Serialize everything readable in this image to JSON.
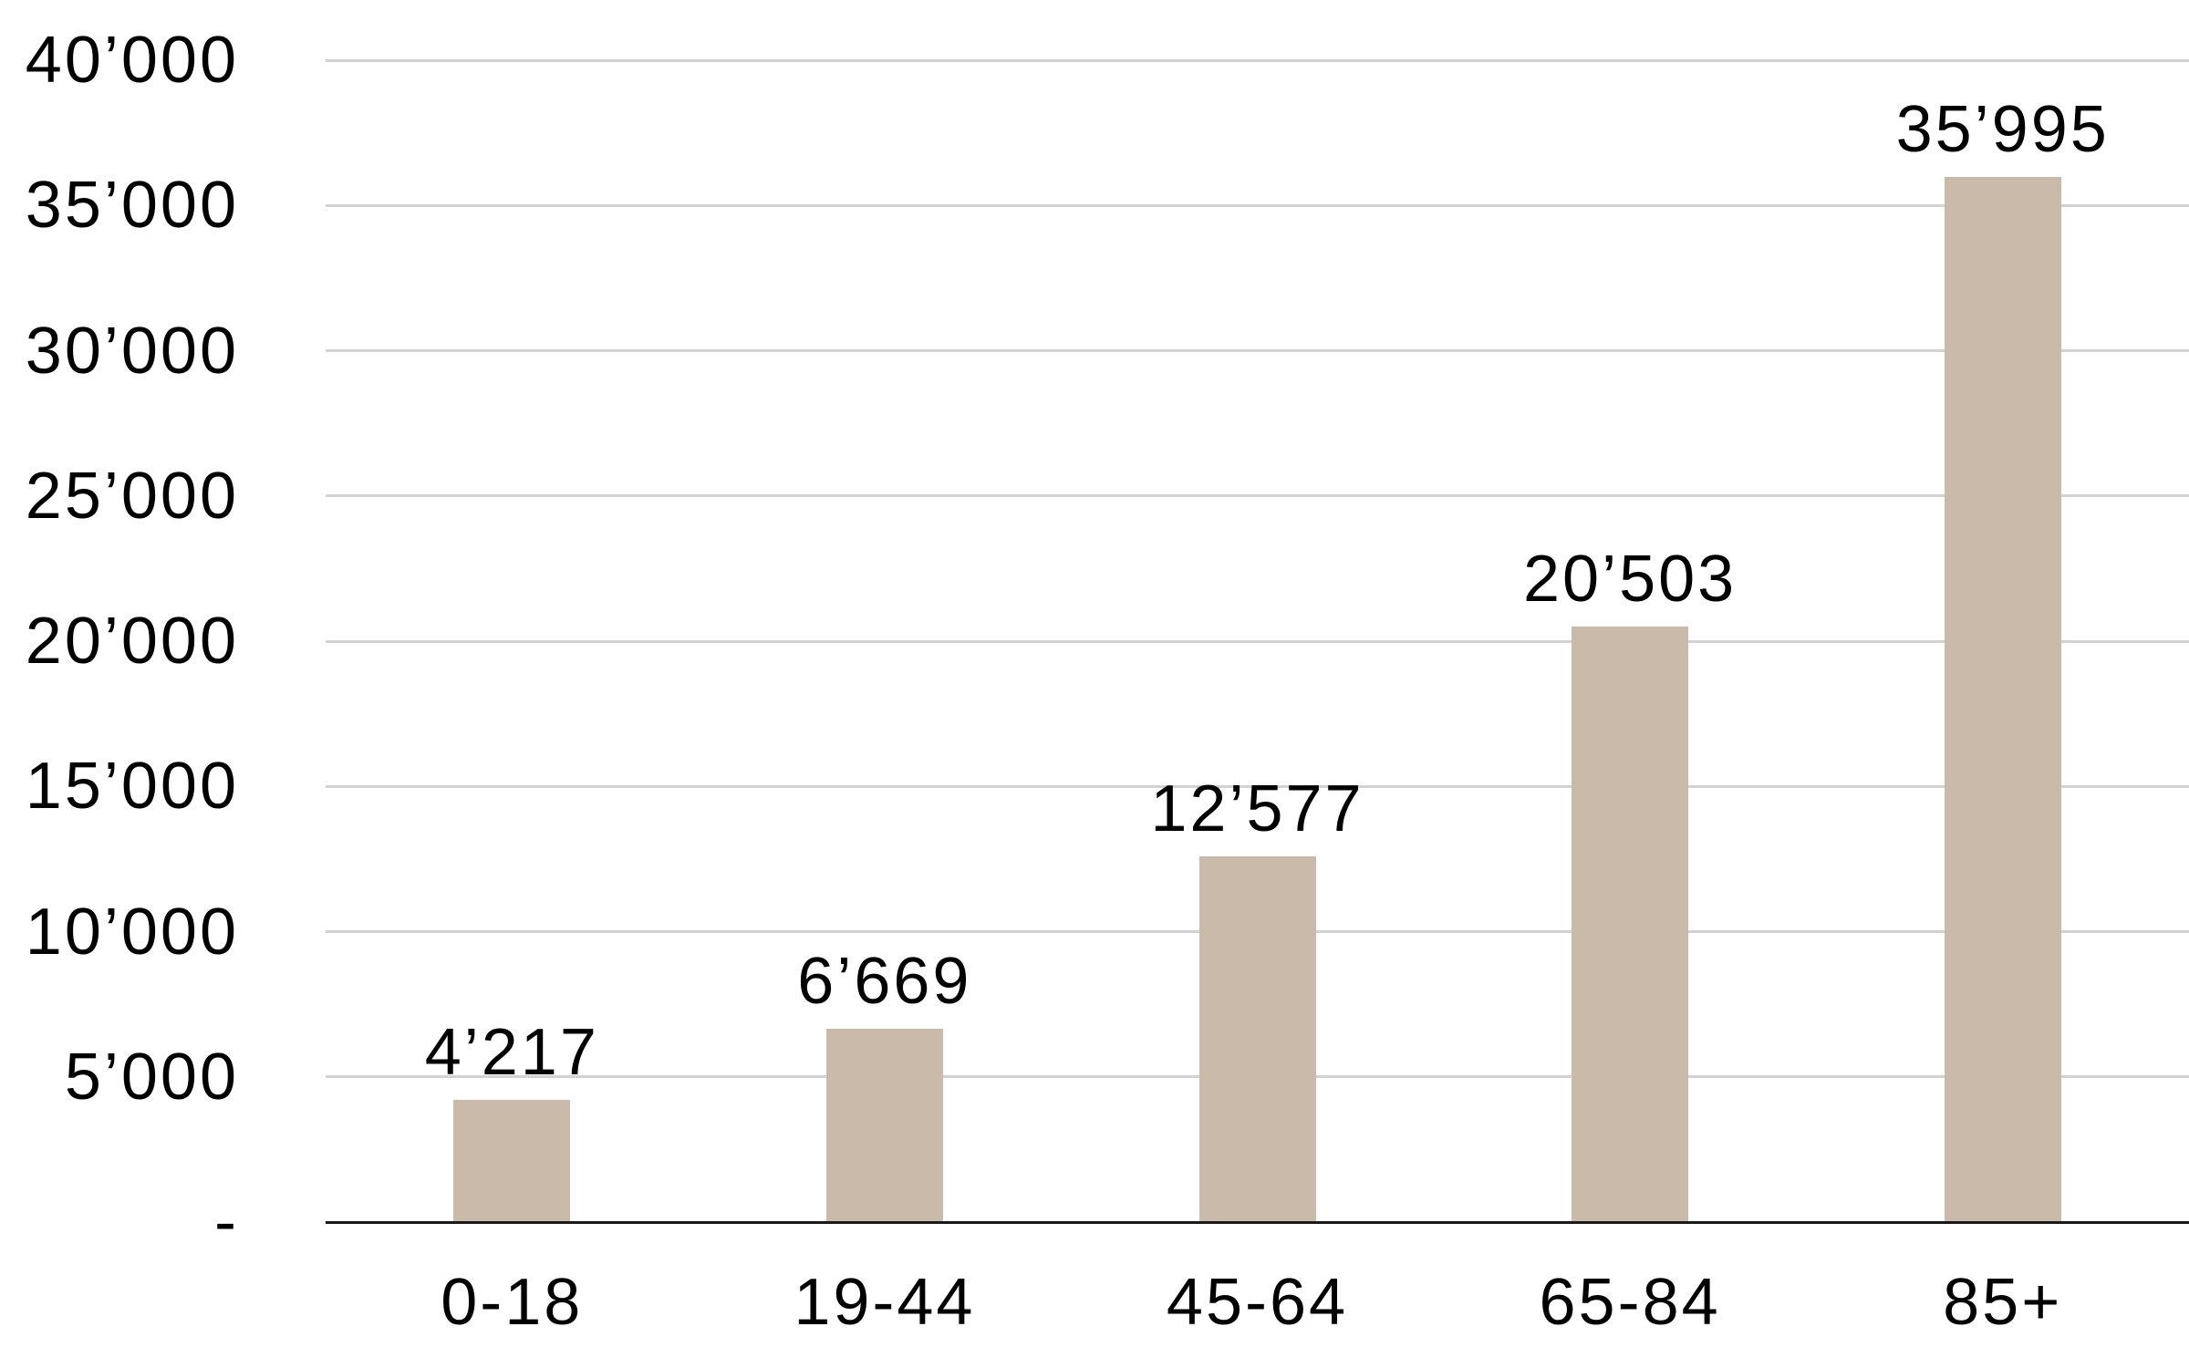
{
  "chart_data": {
    "type": "bar",
    "categories": [
      "0-18",
      "19-44",
      "45-64",
      "65-84",
      "85+"
    ],
    "values": [
      4217,
      6669,
      12577,
      20503,
      35995
    ],
    "value_labels": [
      "4’217",
      "6’669",
      "12’577",
      "20’503",
      "35’995"
    ],
    "y_tick_values": [
      0,
      5000,
      10000,
      15000,
      20000,
      25000,
      30000,
      35000,
      40000
    ],
    "y_tick_labels": [
      "-",
      "5’000",
      "10’000",
      "15’000",
      "20’000",
      "25’000",
      "30’000",
      "35’000",
      "40’000"
    ],
    "ylim": [
      0,
      40000
    ],
    "y_tick_step": 5000,
    "grid": "horizontal",
    "legend": "none",
    "colors": {
      "bar": "#cabaa9",
      "gridline": "#d2d2d2",
      "axis": "#1a1a1a",
      "text": "#000000",
      "background": "#ffffff"
    }
  }
}
